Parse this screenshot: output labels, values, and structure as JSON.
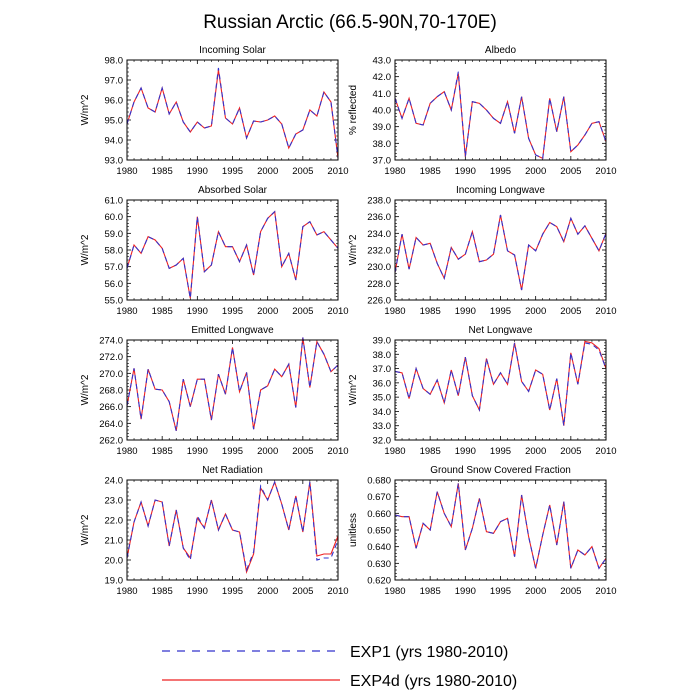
{
  "figure": {
    "title": "Russian Arctic (66.5-90N,70-170E)",
    "legend": [
      {
        "label": "EXP1 (yrs 1980-2010)",
        "color": "#3333cc",
        "style": "dashed"
      },
      {
        "label": "EXP4d (yrs 1980-2010)",
        "color": "#ee2222",
        "style": "solid"
      }
    ]
  },
  "chart_data": [
    {
      "type": "line",
      "title": "Incoming Solar",
      "ylabel": "W/m^2",
      "xlim": [
        1980,
        2010
      ],
      "ylim": [
        93.0,
        98.0
      ],
      "yticks": [
        "93.0",
        "94.0",
        "95.0",
        "96.0",
        "97.0",
        "98.0"
      ],
      "xticks": [
        "1980",
        "1985",
        "1990",
        "1995",
        "2000",
        "2005",
        "2010"
      ],
      "x": [
        1980,
        1981,
        1982,
        1983,
        1984,
        1985,
        1986,
        1987,
        1988,
        1989,
        1990,
        1991,
        1992,
        1993,
        1994,
        1995,
        1996,
        1997,
        1998,
        1999,
        2000,
        2001,
        2002,
        2003,
        2004,
        2005,
        2006,
        2007,
        2008,
        2009,
        2010
      ],
      "series": [
        {
          "name": "EXP1 (yrs 1980-2010)",
          "values": [
            94.8,
            95.9,
            96.6,
            95.6,
            95.4,
            96.6,
            95.3,
            95.9,
            94.9,
            94.4,
            94.9,
            94.6,
            94.7,
            97.6,
            95.1,
            94.8,
            95.6,
            94.1,
            94.95,
            94.9,
            95.0,
            95.2,
            94.8,
            93.6,
            94.3,
            94.5,
            95.5,
            95.2,
            96.4,
            95.9,
            93.1
          ]
        },
        {
          "name": "EXP4d (yrs 1980-2010)",
          "values": [
            94.8,
            95.9,
            96.6,
            95.6,
            95.4,
            96.6,
            95.3,
            95.9,
            94.9,
            94.4,
            94.9,
            94.6,
            94.7,
            97.5,
            95.1,
            94.8,
            95.6,
            94.1,
            94.95,
            94.9,
            95.0,
            95.2,
            94.8,
            93.6,
            94.3,
            94.5,
            95.5,
            95.2,
            96.4,
            95.9,
            93.1
          ]
        }
      ]
    },
    {
      "type": "line",
      "title": "Albedo",
      "ylabel": "% reflected",
      "xlim": [
        1980,
        2010
      ],
      "ylim": [
        37.0,
        43.0
      ],
      "yticks": [
        "37.0",
        "38.0",
        "39.0",
        "40.0",
        "41.0",
        "42.0",
        "43.0"
      ],
      "xticks": [
        "1980",
        "1985",
        "1990",
        "1995",
        "2000",
        "2005",
        "2010"
      ],
      "x": [
        1980,
        1981,
        1982,
        1983,
        1984,
        1985,
        1986,
        1987,
        1988,
        1989,
        1990,
        1991,
        1992,
        1993,
        1994,
        1995,
        1996,
        1997,
        1998,
        1999,
        2000,
        2001,
        2002,
        2003,
        2004,
        2005,
        2006,
        2007,
        2008,
        2009,
        2010
      ],
      "series": [
        {
          "name": "EXP1 (yrs 1980-2010)",
          "values": [
            40.7,
            39.5,
            40.7,
            39.2,
            39.1,
            40.4,
            40.8,
            41.1,
            40.0,
            42.3,
            37.2,
            40.5,
            40.4,
            40.0,
            39.5,
            39.2,
            40.5,
            38.6,
            40.8,
            38.3,
            37.3,
            37.1,
            40.7,
            38.7,
            40.8,
            37.5,
            37.9,
            38.5,
            39.2,
            39.3,
            38.1
          ]
        },
        {
          "name": "EXP4d (yrs 1980-2010)",
          "values": [
            40.7,
            39.5,
            40.7,
            39.2,
            39.1,
            40.4,
            40.8,
            41.1,
            40.0,
            42.2,
            37.2,
            40.5,
            40.4,
            40.0,
            39.5,
            39.2,
            40.5,
            38.6,
            40.8,
            38.3,
            37.3,
            37.1,
            40.7,
            38.7,
            40.8,
            37.5,
            37.9,
            38.5,
            39.2,
            39.3,
            38.1
          ]
        }
      ]
    },
    {
      "type": "line",
      "title": "Absorbed Solar",
      "ylabel": "W/m^2",
      "xlim": [
        1980,
        2010
      ],
      "ylim": [
        55.0,
        61.0
      ],
      "yticks": [
        "55.0",
        "56.0",
        "57.0",
        "58.0",
        "59.0",
        "60.0",
        "61.0"
      ],
      "xticks": [
        "1980",
        "1985",
        "1990",
        "1995",
        "2000",
        "2005",
        "2010"
      ],
      "x": [
        1980,
        1981,
        1982,
        1983,
        1984,
        1985,
        1986,
        1987,
        1988,
        1989,
        1990,
        1991,
        1992,
        1993,
        1994,
        1995,
        1996,
        1997,
        1998,
        1999,
        2000,
        2001,
        2002,
        2003,
        2004,
        2005,
        2006,
        2007,
        2008,
        2009,
        2010
      ],
      "series": [
        {
          "name": "EXP1 (yrs 1980-2010)",
          "values": [
            56.9,
            58.3,
            57.8,
            58.8,
            58.6,
            58.1,
            56.9,
            57.1,
            57.5,
            55.1,
            60.0,
            56.7,
            57.1,
            59.1,
            58.2,
            58.2,
            57.3,
            58.3,
            56.5,
            59.1,
            59.9,
            60.3,
            57.0,
            57.8,
            56.2,
            59.4,
            59.7,
            58.9,
            59.1,
            58.6,
            58.1
          ]
        },
        {
          "name": "EXP4d (yrs 1980-2010)",
          "values": [
            56.9,
            58.3,
            57.8,
            58.8,
            58.6,
            58.1,
            56.9,
            57.1,
            57.5,
            55.1,
            60.0,
            56.7,
            57.1,
            59.1,
            58.2,
            58.2,
            57.3,
            58.3,
            56.5,
            59.1,
            59.9,
            60.3,
            57.0,
            57.8,
            56.2,
            59.4,
            59.7,
            58.9,
            59.1,
            58.6,
            58.1
          ]
        }
      ]
    },
    {
      "type": "line",
      "title": "Incoming Longwave",
      "ylabel": "W/m^2",
      "xlim": [
        1980,
        2010
      ],
      "ylim": [
        226.0,
        238.0
      ],
      "yticks": [
        "226.0",
        "228.0",
        "230.0",
        "232.0",
        "234.0",
        "236.0",
        "238.0"
      ],
      "xticks": [
        "1980",
        "1985",
        "1990",
        "1995",
        "2000",
        "2005",
        "2010"
      ],
      "x": [
        1980,
        1981,
        1982,
        1983,
        1984,
        1985,
        1986,
        1987,
        1988,
        1989,
        1990,
        1991,
        1992,
        1993,
        1994,
        1995,
        1996,
        1997,
        1998,
        1999,
        2000,
        2001,
        2002,
        2003,
        2004,
        2005,
        2006,
        2007,
        2008,
        2009,
        2010
      ],
      "series": [
        {
          "name": "EXP1 (yrs 1980-2010)",
          "values": [
            229.3,
            233.9,
            229.7,
            233.5,
            232.6,
            232.8,
            230.4,
            228.6,
            232.3,
            230.9,
            231.5,
            234.2,
            230.6,
            230.8,
            231.5,
            236.2,
            231.9,
            231.4,
            227.2,
            232.6,
            231.9,
            233.9,
            235.3,
            234.8,
            233.0,
            235.8,
            233.9,
            234.9,
            233.4,
            231.9,
            234.0
          ]
        },
        {
          "name": "EXP4d (yrs 1980-2010)",
          "values": [
            229.3,
            233.9,
            229.7,
            233.5,
            232.6,
            232.8,
            230.4,
            228.6,
            232.3,
            230.9,
            231.5,
            234.2,
            230.6,
            230.8,
            231.5,
            236.2,
            231.9,
            231.4,
            227.2,
            232.6,
            231.9,
            233.9,
            235.3,
            234.8,
            233.0,
            235.8,
            233.9,
            234.9,
            233.4,
            231.9,
            234.0
          ]
        }
      ]
    },
    {
      "type": "line",
      "title": "Emitted Longwave",
      "ylabel": "W/m^2",
      "xlim": [
        1980,
        2010
      ],
      "ylim": [
        262.0,
        274.0
      ],
      "yticks": [
        "262.0",
        "264.0",
        "266.0",
        "268.0",
        "270.0",
        "272.0",
        "274.0"
      ],
      "xticks": [
        "1980",
        "1985",
        "1990",
        "1995",
        "2000",
        "2005",
        "2010"
      ],
      "x": [
        1980,
        1981,
        1982,
        1983,
        1984,
        1985,
        1986,
        1987,
        1988,
        1989,
        1990,
        1991,
        1992,
        1993,
        1994,
        1995,
        1996,
        1997,
        1998,
        1999,
        2000,
        2001,
        2002,
        2003,
        2004,
        2005,
        2006,
        2007,
        2008,
        2009,
        2010
      ],
      "series": [
        {
          "name": "EXP1 (yrs 1980-2010)",
          "values": [
            266.1,
            270.6,
            264.5,
            270.5,
            268.1,
            268.0,
            266.6,
            263.1,
            269.3,
            266.0,
            269.3,
            269.3,
            264.4,
            269.9,
            267.5,
            273.1,
            267.8,
            270.1,
            263.3,
            268.0,
            268.5,
            270.5,
            269.6,
            271.1,
            265.9,
            274.3,
            268.3,
            273.8,
            272.3,
            270.2,
            271.0
          ]
        },
        {
          "name": "EXP4d (yrs 1980-2010)",
          "values": [
            266.1,
            270.6,
            264.5,
            270.5,
            268.1,
            268.0,
            266.6,
            263.1,
            269.3,
            266.0,
            269.3,
            269.3,
            264.4,
            269.9,
            267.5,
            273.1,
            267.8,
            270.1,
            263.3,
            268.0,
            268.5,
            270.5,
            269.6,
            271.1,
            265.9,
            274.3,
            268.3,
            273.8,
            272.3,
            270.2,
            271.0
          ]
        }
      ]
    },
    {
      "type": "line",
      "title": "Net Longwave",
      "ylabel": "W/m^2",
      "xlim": [
        1980,
        2010
      ],
      "ylim": [
        32.0,
        39.0
      ],
      "yticks": [
        "32.0",
        "33.0",
        "34.0",
        "35.0",
        "36.0",
        "37.0",
        "38.0",
        "39.0"
      ],
      "xticks": [
        "1980",
        "1985",
        "1990",
        "1995",
        "2000",
        "2005",
        "2010"
      ],
      "x": [
        1980,
        1981,
        1982,
        1983,
        1984,
        1985,
        1986,
        1987,
        1988,
        1989,
        1990,
        1991,
        1992,
        1993,
        1994,
        1995,
        1996,
        1997,
        1998,
        1999,
        2000,
        2001,
        2002,
        2003,
        2004,
        2005,
        2006,
        2007,
        2008,
        2009,
        2010
      ],
      "series": [
        {
          "name": "EXP1 (yrs 1980-2010)",
          "values": [
            36.8,
            36.7,
            34.9,
            37.0,
            35.6,
            35.2,
            36.2,
            34.6,
            36.9,
            35.1,
            37.8,
            35.1,
            34.1,
            37.7,
            35.9,
            36.7,
            35.9,
            38.8,
            36.1,
            35.4,
            36.9,
            36.6,
            34.1,
            36.3,
            33.0,
            38.1,
            35.9,
            38.8,
            38.7,
            38.3,
            37.0
          ]
        },
        {
          "name": "EXP4d (yrs 1980-2010)",
          "values": [
            36.8,
            36.7,
            34.9,
            37.0,
            35.6,
            35.2,
            36.2,
            34.6,
            36.9,
            35.1,
            37.8,
            35.1,
            34.1,
            37.7,
            35.9,
            36.7,
            35.9,
            38.8,
            36.1,
            35.4,
            36.9,
            36.6,
            34.1,
            36.3,
            33.0,
            38.1,
            35.9,
            38.9,
            38.8,
            38.4,
            37.0
          ]
        }
      ]
    },
    {
      "type": "line",
      "title": "Net Radiation",
      "ylabel": "W/m^2",
      "xlim": [
        1980,
        2010
      ],
      "ylim": [
        19.0,
        24.0
      ],
      "yticks": [
        "19.0",
        "20.0",
        "21.0",
        "22.0",
        "23.0",
        "24.0"
      ],
      "xticks": [
        "1980",
        "1985",
        "1990",
        "1995",
        "2000",
        "2005",
        "2010"
      ],
      "x": [
        1980,
        1981,
        1982,
        1983,
        1984,
        1985,
        1986,
        1987,
        1988,
        1989,
        1990,
        1991,
        1992,
        1993,
        1994,
        1995,
        1996,
        1997,
        1998,
        1999,
        2000,
        2001,
        2002,
        2003,
        2004,
        2005,
        2006,
        2007,
        2008,
        2009,
        2010
      ],
      "series": [
        {
          "name": "EXP1 (yrs 1980-2010)",
          "values": [
            20.1,
            21.9,
            22.9,
            21.7,
            23.0,
            22.9,
            20.7,
            22.5,
            20.6,
            20.0,
            22.2,
            21.6,
            23.0,
            21.5,
            22.3,
            21.5,
            21.4,
            19.5,
            20.4,
            23.7,
            23.0,
            23.9,
            22.8,
            21.5,
            23.2,
            21.4,
            23.9,
            20.0,
            20.1,
            20.1,
            21.0
          ]
        },
        {
          "name": "EXP4d (yrs 1980-2010)",
          "values": [
            20.1,
            21.9,
            22.9,
            21.7,
            23.0,
            22.9,
            20.7,
            22.5,
            20.6,
            20.1,
            22.1,
            21.6,
            23.0,
            21.5,
            22.3,
            21.5,
            21.4,
            19.4,
            20.3,
            23.6,
            23.0,
            23.9,
            22.8,
            21.5,
            23.2,
            21.4,
            23.9,
            20.2,
            20.3,
            20.3,
            21.2
          ]
        }
      ]
    },
    {
      "type": "line",
      "title": "Ground Snow Covered Fraction",
      "ylabel": "unitless",
      "xlim": [
        1980,
        2010
      ],
      "ylim": [
        0.62,
        0.68
      ],
      "yticks": [
        "0.620",
        "0.630",
        "0.640",
        "0.650",
        "0.660",
        "0.670",
        "0.680"
      ],
      "xticks": [
        "1980",
        "1985",
        "1990",
        "1995",
        "2000",
        "2005",
        "2010"
      ],
      "x": [
        1980,
        1981,
        1982,
        1983,
        1984,
        1985,
        1986,
        1987,
        1988,
        1989,
        1990,
        1991,
        1992,
        1993,
        1994,
        1995,
        1996,
        1997,
        1998,
        1999,
        2000,
        2001,
        2002,
        2003,
        2004,
        2005,
        2006,
        2007,
        2008,
        2009,
        2010
      ],
      "series": [
        {
          "name": "EXP1 (yrs 1980-2010)",
          "values": [
            0.659,
            0.658,
            0.658,
            0.639,
            0.654,
            0.65,
            0.673,
            0.66,
            0.652,
            0.678,
            0.638,
            0.651,
            0.669,
            0.649,
            0.648,
            0.655,
            0.657,
            0.634,
            0.671,
            0.646,
            0.627,
            0.647,
            0.665,
            0.641,
            0.667,
            0.627,
            0.638,
            0.635,
            0.64,
            0.627,
            0.633
          ]
        },
        {
          "name": "EXP4d (yrs 1980-2010)",
          "values": [
            0.659,
            0.658,
            0.658,
            0.639,
            0.654,
            0.65,
            0.673,
            0.66,
            0.652,
            0.678,
            0.638,
            0.651,
            0.669,
            0.649,
            0.648,
            0.655,
            0.657,
            0.634,
            0.671,
            0.646,
            0.627,
            0.647,
            0.665,
            0.641,
            0.667,
            0.627,
            0.638,
            0.635,
            0.64,
            0.627,
            0.633
          ]
        }
      ]
    }
  ]
}
